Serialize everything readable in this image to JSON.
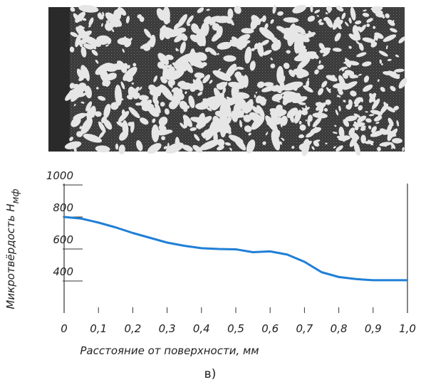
{
  "chart_data": {
    "type": "line",
    "ylabel": "Микротвёрдость H",
    "ylabel_subscript": "мф",
    "xlabel": "Расстояние от поверхности, мм",
    "caption": "в)",
    "x": [
      0,
      0.05,
      0.1,
      0.15,
      0.2,
      0.25,
      0.3,
      0.35,
      0.4,
      0.45,
      0.5,
      0.55,
      0.6,
      0.65,
      0.7,
      0.75,
      0.8,
      0.85,
      0.9,
      0.95,
      1.0
    ],
    "series": [
      {
        "name": null,
        "color": "#1f7fd6",
        "values": [
          800,
          790,
          765,
          735,
          700,
          670,
          640,
          620,
          605,
          600,
          598,
          580,
          585,
          565,
          520,
          455,
          425,
          412,
          405,
          405,
          405
        ]
      }
    ],
    "xlim": [
      0,
      1.0
    ],
    "xticks": [
      0,
      {
        "value": 0.1,
        "label": "0,1"
      },
      {
        "value": 0.2,
        "label": "0,2"
      },
      {
        "value": 0.3,
        "label": "0,3"
      },
      {
        "value": 0.4,
        "label": "0,4"
      },
      {
        "value": 0.5,
        "label": "0,5"
      },
      {
        "value": 0.6,
        "label": "0,6"
      },
      {
        "value": 0.7,
        "label": "0,7"
      },
      {
        "value": 0.8,
        "label": "0,8"
      },
      {
        "value": 0.9,
        "label": "0,9"
      },
      {
        "value": 1.0,
        "label": "1,0"
      }
    ],
    "ylim": [
      200,
      1000
    ],
    "yticks": [
      400,
      600,
      800,
      1000
    ],
    "grid": false
  }
}
